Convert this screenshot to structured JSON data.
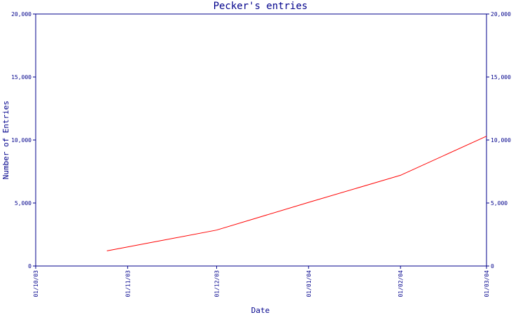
{
  "chart_data": {
    "type": "line",
    "title": "Pecker's entries",
    "xlabel": "Date",
    "ylabel": "Number of Entries",
    "x_ticks": [
      "01/10/03",
      "01/11/03",
      "01/12/03",
      "01/01/04",
      "01/02/04",
      "01/03/04"
    ],
    "y_ticks": [
      "0",
      "5,000",
      "10,000",
      "15,000",
      "20,000"
    ],
    "y_tick_values": [
      0,
      5000,
      10000,
      15000,
      20000
    ],
    "ylim": [
      0,
      20000
    ],
    "xlim": [
      "2003-10-01",
      "2004-03-01"
    ],
    "right_axis_mirrored": true,
    "grid": false,
    "series": [
      {
        "color": "#ff0000",
        "points": [
          {
            "x": "2003-10-25",
            "y": 1200
          },
          {
            "x": "2003-12-01",
            "y": 2850
          },
          {
            "x": "2004-01-01",
            "y": 5050
          },
          {
            "x": "2004-02-01",
            "y": 7200
          },
          {
            "x": "2004-03-01",
            "y": 10300
          }
        ]
      }
    ]
  }
}
